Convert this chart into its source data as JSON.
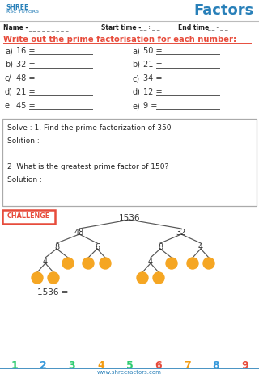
{
  "title": "Factors",
  "name_label": "Name -",
  "name_dashes": "_ _ _ _ _ _ _ _ _",
  "start_label": "Start time -",
  "start_dashes": "_ _ : _ _",
  "end_label": "End time",
  "end_dashes": "_ _ - _ _",
  "instruction": "Write out the prime factorisation for each number:",
  "left_items": [
    {
      "label": "a)",
      "num": "16 ="
    },
    {
      "label": "b)",
      "num": "32 ="
    },
    {
      "label": "c/",
      "num": "48 ="
    },
    {
      "label": "d)",
      "num": "21 ="
    },
    {
      "label": "e",
      "num": "45 ="
    }
  ],
  "right_items": [
    {
      "label": "a)",
      "num": "50 ="
    },
    {
      "label": "b)",
      "num": "21 ="
    },
    {
      "label": "c)",
      "num": "34 ="
    },
    {
      "label": "d)",
      "num": "12 ="
    },
    {
      "label": "e)",
      "num": "9 ="
    }
  ],
  "solve_text": [
    "Solve : 1. Find the prime factorization of 350",
    "Solıtion :",
    "",
    "2  What is the greatest prime factor of 150?",
    "Solution :"
  ],
  "challenge_text": "CHALLENGE",
  "tree_root": "1536",
  "tree_eq": "1536 =",
  "bottom_nums": [
    "1",
    "2",
    "3",
    "4",
    "5",
    "6",
    "7",
    "8",
    "9"
  ],
  "bottom_colors": [
    "#2ecc71",
    "#3498db",
    "#2ecc71",
    "#f39c12",
    "#2ecc71",
    "#e74c3c",
    "#f39c12",
    "#3498db",
    "#e74c3c"
  ],
  "website": "www.shreeractors.com",
  "bg_color": "#ffffff",
  "orange": "#f5a623",
  "header_blue": "#2980b9",
  "red": "#e74c3c",
  "green": "#27ae60",
  "line_color": "#555555"
}
